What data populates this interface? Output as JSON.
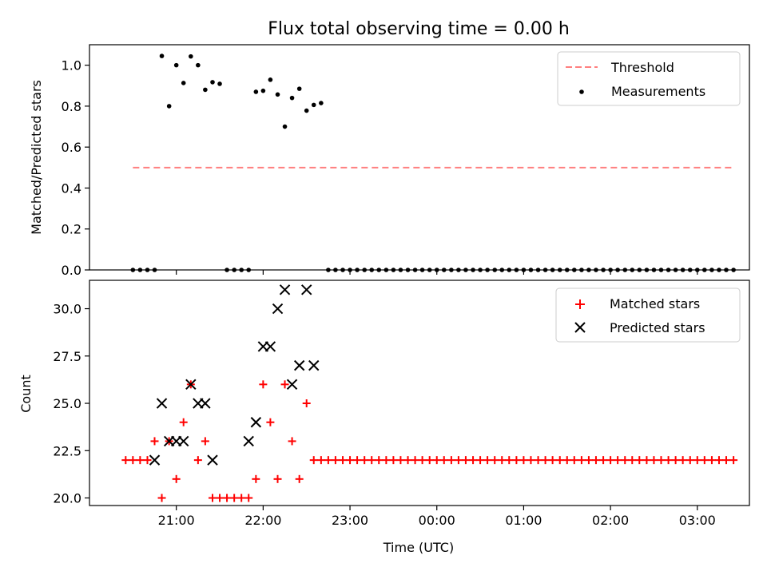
{
  "chart_data": [
    {
      "type": "scatter",
      "title": "Flux total observing time = 0.00 h",
      "ylabel": "Matched/Predicted stars",
      "xlabel": "",
      "ylim": [
        0,
        1.1
      ],
      "xlim_hours": [
        20.0,
        27.6
      ],
      "yticks": [
        "0.0",
        "0.2",
        "0.4",
        "0.6",
        "0.8",
        "1.0"
      ],
      "ytick_values": [
        0,
        0.2,
        0.4,
        0.6,
        0.8,
        1.0
      ],
      "xticks_values": [
        21,
        22,
        23,
        24,
        25,
        26,
        27
      ],
      "legend": {
        "position": "upper right",
        "entries": [
          "Threshold",
          "Measurements"
        ]
      },
      "threshold": {
        "name": "Threshold",
        "value": 0.5,
        "x_range": [
          20.5,
          27.42
        ],
        "color": "#ff7f7f",
        "style": "dashed"
      },
      "series": [
        {
          "name": "Measurements",
          "color": "#000000",
          "marker": "dot",
          "x": [
            20.5,
            20.583,
            20.667,
            20.75,
            20.833,
            20.917,
            21.0,
            21.083,
            21.167,
            21.25,
            21.333,
            21.417,
            21.5,
            21.583,
            21.667,
            21.75,
            21.833,
            21.917,
            22.0,
            22.083,
            22.167,
            22.25,
            22.333,
            22.417,
            22.5,
            22.583,
            22.667,
            22.75,
            22.833,
            22.917,
            23.0,
            23.083,
            23.167,
            23.25,
            23.333,
            23.417,
            23.5,
            23.583,
            23.667,
            23.75,
            23.833,
            23.917,
            24.0,
            24.083,
            24.167,
            24.25,
            24.333,
            24.417,
            24.5,
            24.583,
            24.667,
            24.75,
            24.833,
            24.917,
            25.0,
            25.083,
            25.167,
            25.25,
            25.333,
            25.417,
            25.5,
            25.583,
            25.667,
            25.75,
            25.833,
            25.917,
            26.0,
            26.083,
            26.167,
            26.25,
            26.333,
            26.417,
            26.5,
            26.583,
            26.667,
            26.75,
            26.833,
            26.917,
            27.0,
            27.083,
            27.167,
            27.25,
            27.333,
            27.417
          ],
          "y": [
            0,
            0,
            0,
            0,
            1.045,
            0.8,
            1.0,
            0.913,
            1.043,
            1.0,
            0.88,
            0.917,
            0.909,
            0,
            0,
            0,
            0,
            0.87,
            0.875,
            0.929,
            0.857,
            0.7,
            0.84,
            0.885,
            0.778,
            0.806,
            0.815,
            0,
            0,
            0,
            0,
            0,
            0,
            0,
            0,
            0,
            0,
            0,
            0,
            0,
            0,
            0,
            0,
            0,
            0,
            0,
            0,
            0,
            0,
            0,
            0,
            0,
            0,
            0,
            0,
            0,
            0,
            0,
            0,
            0,
            0,
            0,
            0,
            0,
            0,
            0,
            0,
            0,
            0,
            0,
            0,
            0,
            0,
            0,
            0,
            0,
            0,
            0,
            0,
            0,
            0,
            0,
            0,
            0
          ]
        }
      ]
    },
    {
      "type": "scatter",
      "title": "",
      "ylabel": "Count",
      "xlabel": "Time (UTC)",
      "ylim": [
        19.6,
        31.5
      ],
      "xlim_hours": [
        20.0,
        27.6
      ],
      "yticks": [
        "20.0",
        "22.5",
        "25.0",
        "27.5",
        "30.0"
      ],
      "ytick_values": [
        20.0,
        22.5,
        25.0,
        27.5,
        30.0
      ],
      "xticks": [
        "21:00",
        "22:00",
        "23:00",
        "00:00",
        "01:00",
        "02:00",
        "03:00"
      ],
      "xticks_values": [
        21,
        22,
        23,
        24,
        25,
        26,
        27
      ],
      "legend": {
        "position": "upper right",
        "entries": [
          "Matched stars",
          "Predicted stars"
        ]
      },
      "series": [
        {
          "name": "Matched stars",
          "color": "#ff0000",
          "marker": "plus",
          "x": [
            20.417,
            20.5,
            20.583,
            20.667,
            20.75,
            20.833,
            20.917,
            21.0,
            21.083,
            21.167,
            21.25,
            21.333,
            21.417,
            21.5,
            21.583,
            21.667,
            21.75,
            21.833,
            21.917,
            22.0,
            22.083,
            22.167,
            22.25,
            22.333,
            22.417,
            22.5,
            22.583,
            22.667,
            22.75,
            22.833,
            22.917,
            23.0,
            23.083,
            23.167,
            23.25,
            23.333,
            23.417,
            23.5,
            23.583,
            23.667,
            23.75,
            23.833,
            23.917,
            24.0,
            24.083,
            24.167,
            24.25,
            24.333,
            24.417,
            24.5,
            24.583,
            24.667,
            24.75,
            24.833,
            24.917,
            25.0,
            25.083,
            25.167,
            25.25,
            25.333,
            25.417,
            25.5,
            25.583,
            25.667,
            25.75,
            25.833,
            25.917,
            26.0,
            26.083,
            26.167,
            26.25,
            26.333,
            26.417,
            26.5,
            26.583,
            26.667,
            26.75,
            26.833,
            26.917,
            27.0,
            27.083,
            27.167,
            27.25,
            27.333,
            27.417
          ],
          "y": [
            22,
            22,
            22,
            22,
            23,
            20,
            23,
            21,
            24,
            26,
            22,
            23,
            20,
            20,
            20,
            20,
            20,
            20,
            21,
            26,
            24,
            21,
            26,
            23,
            21,
            25,
            22,
            22,
            22,
            22,
            22,
            22,
            22,
            22,
            22,
            22,
            22,
            22,
            22,
            22,
            22,
            22,
            22,
            22,
            22,
            22,
            22,
            22,
            22,
            22,
            22,
            22,
            22,
            22,
            22,
            22,
            22,
            22,
            22,
            22,
            22,
            22,
            22,
            22,
            22,
            22,
            22,
            22,
            22,
            22,
            22,
            22,
            22,
            22,
            22,
            22,
            22,
            22,
            22,
            22,
            22,
            22,
            22,
            22,
            22
          ]
        },
        {
          "name": "Predicted stars",
          "color": "#000000",
          "marker": "x",
          "x": [
            20.75,
            20.833,
            20.917,
            21.0,
            21.083,
            21.167,
            21.25,
            21.333,
            21.417,
            21.833,
            21.917,
            22.0,
            22.083,
            22.167,
            22.25,
            22.333,
            22.417,
            22.5,
            22.583
          ],
          "y": [
            22,
            25,
            23,
            23,
            23,
            26,
            25,
            25,
            22,
            23,
            24,
            28,
            28,
            30,
            31,
            26,
            27,
            31,
            27
          ]
        }
      ]
    }
  ]
}
